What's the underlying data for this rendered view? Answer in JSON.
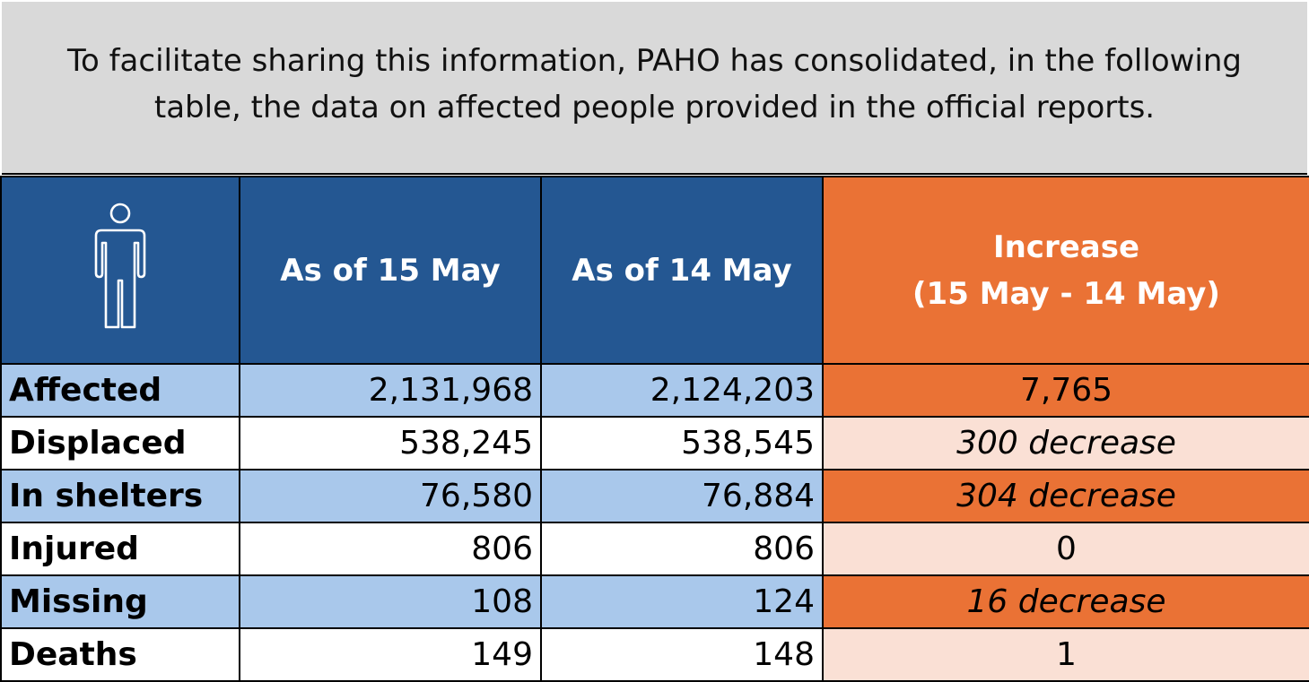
{
  "intro": {
    "text": "To facilitate sharing this information, PAHO has consolidated, in the following table, the data on affected people provided in the official reports."
  },
  "header": {
    "icon": "person-icon",
    "col_current": "As of 15 May",
    "col_previous": "As of 14 May",
    "col_increase_line1": "Increase",
    "col_increase_line2": "(15 May - 14 May)"
  },
  "rows": [
    {
      "label": "Affected",
      "current": "2,131,968",
      "previous": "2,124,203",
      "increase": "7,765"
    },
    {
      "label": "Displaced",
      "current": "538,245",
      "previous": "538,545",
      "increase": "300 decrease"
    },
    {
      "label": "In shelters",
      "current": "76,580",
      "previous": "76,884",
      "increase": "304 decrease"
    },
    {
      "label": "Injured",
      "current": "806",
      "previous": "806",
      "increase": "0"
    },
    {
      "label": "Missing",
      "current": "108",
      "previous": "124",
      "increase": "16 decrease"
    },
    {
      "label": "Deaths",
      "current": "149",
      "previous": "148",
      "increase": "1"
    }
  ],
  "colors": {
    "header_blue": "#245792",
    "header_orange": "#ea7235",
    "row_blue": "#a9c8eb",
    "row_peach": "#fae0d5",
    "banner_gray": "#d9d9d9"
  }
}
